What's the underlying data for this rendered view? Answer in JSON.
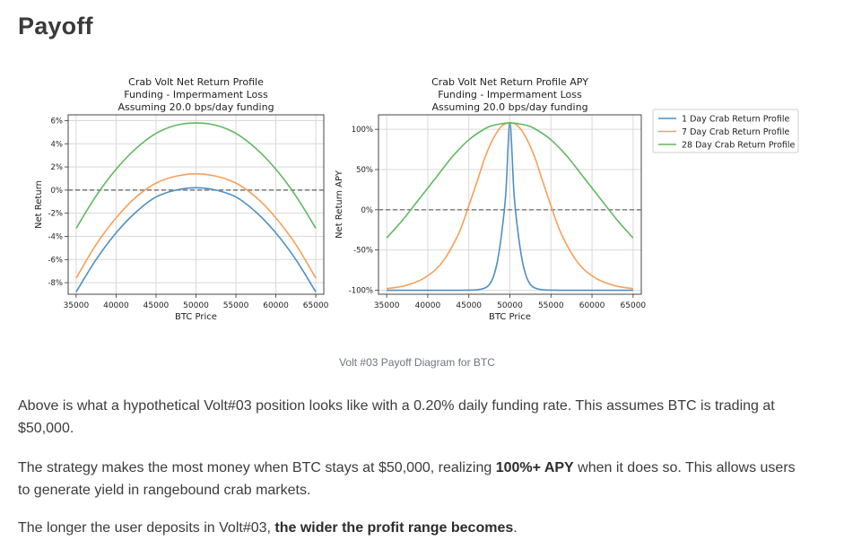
{
  "page": {
    "heading": "Payoff",
    "caption": "Volt #03 Payoff Diagram for BTC",
    "para1": "Above is what a hypothetical Volt#03 position looks like with a 0.20% daily funding rate. This assumes BTC is trading at $50,000.",
    "para2_prefix": "The strategy makes the most money when BTC stays at $50,000, realizing ",
    "para2_bold": "100%+ APY",
    "para2_suffix": " when it does so. This allows users to generate yield in rangebound crab markets.",
    "para3_prefix": "The longer the user deposits in Volt#03, ",
    "para3_bold": "the wider the profit range becomes",
    "para3_suffix": "."
  },
  "colors": {
    "series_1d": "#4f8fc4",
    "series_7d": "#f5a05a",
    "series_28d": "#5fb95f",
    "grid": "#d9d9d9",
    "zero_line": "#777777"
  },
  "chart_data": [
    {
      "type": "line",
      "title_lines": [
        "Crab Volt Net Return Profile",
        "Funding - Impermament Loss",
        "Assuming 20.0 bps/day funding"
      ],
      "xlabel": "BTC Price",
      "ylabel": "Net Return",
      "xlim": [
        34000,
        66000
      ],
      "ylim": [
        -9,
        6.5
      ],
      "x_ticks": [
        35000,
        40000,
        45000,
        50000,
        55000,
        60000,
        65000
      ],
      "x_tick_labels": [
        "35000",
        "40000",
        "45000",
        "50000",
        "55000",
        "60000",
        "65000"
      ],
      "y_ticks": [
        6,
        4,
        2,
        0,
        -2,
        -4,
        -6,
        -8
      ],
      "y_tick_labels": [
        "6%",
        "4%",
        "2%",
        "0%",
        "-2%",
        "-4%",
        "-6%",
        "-8%"
      ],
      "zero_line": true,
      "series": [
        {
          "name": "1 Day Crab Return Profile",
          "x": [
            35000,
            37500,
            40000,
            42500,
            45000,
            47500,
            50000,
            52500,
            55000,
            57500,
            60000,
            62500,
            65000
          ],
          "values": [
            -8.8,
            -6.0,
            -3.7,
            -1.9,
            -0.6,
            0.0,
            0.2,
            0.0,
            -0.6,
            -1.9,
            -3.7,
            -6.0,
            -8.8
          ]
        },
        {
          "name": "7 Day Crab Return Profile",
          "x": [
            35000,
            37500,
            40000,
            42500,
            45000,
            47500,
            50000,
            52500,
            55000,
            57500,
            60000,
            62500,
            65000
          ],
          "values": [
            -7.6,
            -4.7,
            -2.4,
            -0.6,
            0.6,
            1.2,
            1.4,
            1.2,
            0.6,
            -0.6,
            -2.4,
            -4.7,
            -7.6
          ]
        },
        {
          "name": "28 Day Crab Return Profile",
          "x": [
            35000,
            37500,
            40000,
            42500,
            45000,
            47500,
            50000,
            52500,
            55000,
            57500,
            60000,
            62500,
            65000
          ],
          "values": [
            -3.3,
            -0.5,
            1.8,
            3.6,
            4.9,
            5.6,
            5.8,
            5.6,
            4.9,
            3.6,
            1.8,
            -0.5,
            -3.3
          ]
        }
      ]
    },
    {
      "type": "line",
      "title_lines": [
        "Crab Volt Net Return Profile APY",
        "Funding - Impermament Loss",
        "Assuming 20.0 bps/day funding"
      ],
      "xlabel": "BTC Price",
      "ylabel": "Net Return APY",
      "xlim": [
        34000,
        66000
      ],
      "ylim": [
        -105,
        118
      ],
      "x_ticks": [
        35000,
        40000,
        45000,
        50000,
        55000,
        60000,
        65000
      ],
      "x_tick_labels": [
        "35000",
        "40000",
        "45000",
        "50000",
        "55000",
        "60000",
        "65000"
      ],
      "y_ticks": [
        100,
        50,
        0,
        -50,
        -100
      ],
      "y_tick_labels": [
        "100%",
        "50%",
        "0%",
        "-50%",
        "-100%"
      ],
      "zero_line": true,
      "series": [
        {
          "name": "1 Day Crab Return Profile",
          "x": [
            35000,
            40000,
            44000,
            46000,
            47000,
            47500,
            48000,
            48500,
            49000,
            49500,
            50000,
            50500,
            51000,
            51500,
            52000,
            52500,
            53000,
            54000,
            56000,
            60000,
            65000
          ],
          "values": [
            -100,
            -100,
            -100,
            -99.5,
            -97,
            -93,
            -83,
            -63,
            -29,
            20,
            108,
            20,
            -29,
            -63,
            -83,
            -93,
            -97,
            -99.5,
            -100,
            -100,
            -100
          ]
        },
        {
          "name": "7 Day Crab Return Profile",
          "x": [
            35000,
            37000,
            39000,
            40000,
            41000,
            42000,
            43000,
            44000,
            45000,
            46000,
            47000,
            48000,
            49000,
            50000,
            51000,
            52000,
            53000,
            54000,
            55000,
            56000,
            57000,
            58000,
            59000,
            60000,
            61000,
            63000,
            65000
          ],
          "values": [
            -98,
            -95,
            -88,
            -82,
            -74,
            -62,
            -45,
            -24,
            5,
            35,
            66,
            89,
            104,
            108,
            104,
            89,
            66,
            35,
            5,
            -24,
            -45,
            -62,
            -74,
            -82,
            -88,
            -95,
            -98
          ]
        },
        {
          "name": "28 Day Crab Return Profile",
          "x": [
            35000,
            37000,
            39000,
            41000,
            43000,
            45000,
            47000,
            48000,
            49000,
            50000,
            51000,
            52000,
            53000,
            55000,
            57000,
            59000,
            61000,
            63000,
            65000
          ],
          "values": [
            -35,
            -12,
            14,
            40,
            66,
            87,
            101,
            105,
            107,
            108,
            107,
            105,
            101,
            87,
            66,
            40,
            14,
            -12,
            -35
          ]
        }
      ]
    }
  ]
}
